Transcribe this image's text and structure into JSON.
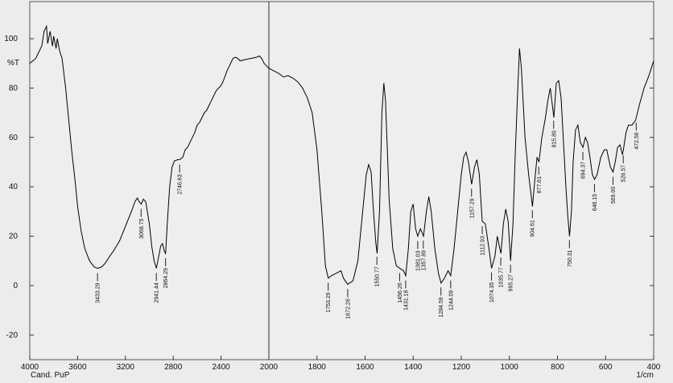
{
  "chart_data": {
    "type": "line",
    "y_label": "%T",
    "x_label": "1/cm",
    "footer": "Cand. PuP",
    "color": "#000000",
    "xlim": [
      4000,
      400
    ],
    "x_scale_change": 2000,
    "ylim": [
      -30,
      115
    ],
    "xticks": [
      4000,
      3600,
      3200,
      2800,
      2400,
      2000,
      1800,
      1600,
      1400,
      1200,
      1000,
      800,
      600,
      400
    ],
    "yticks": [
      -20,
      0,
      20,
      40,
      60,
      80,
      100
    ],
    "x": [
      4000,
      3950,
      3900,
      3880,
      3860,
      3850,
      3830,
      3810,
      3800,
      3780,
      3770,
      3750,
      3730,
      3700,
      3680,
      3650,
      3620,
      3600,
      3570,
      3540,
      3500,
      3460,
      3433,
      3400,
      3370,
      3330,
      3300,
      3250,
      3200,
      3150,
      3120,
      3100,
      3085,
      3068,
      3050,
      3030,
      3000,
      2980,
      2960,
      2941,
      2925,
      2905,
      2890,
      2875,
      2864,
      2850,
      2830,
      2810,
      2790,
      2760,
      2746,
      2720,
      2700,
      2680,
      2660,
      2640,
      2620,
      2600,
      2580,
      2560,
      2540,
      2520,
      2500,
      2470,
      2440,
      2420,
      2400,
      2380,
      2350,
      2320,
      2300,
      2280,
      2260,
      2240,
      2200,
      2150,
      2100,
      2080,
      2060,
      2040,
      2020,
      2000,
      1980,
      1960,
      1940,
      1920,
      1900,
      1880,
      1860,
      1840,
      1820,
      1800,
      1780,
      1765,
      1753,
      1740,
      1720,
      1700,
      1690,
      1672,
      1650,
      1630,
      1610,
      1595,
      1585,
      1575,
      1565,
      1555,
      1550,
      1540,
      1530,
      1522,
      1515,
      1500,
      1485,
      1470,
      1456,
      1440,
      1431,
      1420,
      1410,
      1400,
      1390,
      1381,
      1370,
      1357,
      1345,
      1335,
      1325,
      1310,
      1295,
      1284,
      1270,
      1255,
      1244,
      1230,
      1215,
      1200,
      1190,
      1180,
      1170,
      1157,
      1145,
      1135,
      1125,
      1113,
      1100,
      1085,
      1074,
      1060,
      1050,
      1040,
      1035,
      1025,
      1015,
      1005,
      995,
      985,
      975,
      965,
      958,
      950,
      935,
      920,
      904,
      895,
      885,
      877,
      865,
      850,
      840,
      830,
      820,
      815,
      805,
      795,
      785,
      775,
      765,
      757,
      750,
      742,
      735,
      725,
      715,
      705,
      694,
      684,
      675,
      665,
      655,
      646,
      635,
      620,
      605,
      595,
      580,
      569,
      560,
      550,
      540,
      530,
      526,
      515,
      505,
      490,
      475,
      460,
      440,
      420,
      400
    ],
    "values": [
      90,
      92,
      97,
      103,
      105,
      98,
      103,
      97,
      101,
      96,
      100,
      95,
      92,
      80,
      70,
      55,
      42,
      32,
      22,
      15,
      10,
      7.5,
      7,
      7.5,
      9,
      12,
      14,
      18,
      24,
      30,
      34,
      35.5,
      34,
      33,
      35,
      34,
      25,
      16,
      10,
      7,
      11,
      16,
      17,
      14,
      13,
      25,
      40,
      48,
      50.5,
      51,
      51,
      52,
      55,
      56,
      58,
      60,
      62,
      65,
      66,
      68,
      70,
      71,
      73,
      76,
      79,
      80,
      81,
      83,
      87,
      90,
      92,
      92.5,
      92,
      91,
      91.5,
      92,
      92.5,
      93,
      92,
      90,
      89,
      88,
      87,
      86,
      84.5,
      85,
      84,
      82.5,
      80,
      76,
      70,
      55,
      30,
      8,
      3,
      4,
      5,
      6,
      3,
      0.5,
      2,
      10,
      30,
      45,
      49,
      46,
      30,
      17,
      13,
      30,
      70,
      82,
      75,
      35,
      15,
      8,
      7,
      6,
      4,
      15,
      30,
      33,
      23,
      20,
      23,
      20,
      30,
      36,
      30,
      15,
      5,
      1,
      3,
      6,
      4,
      15,
      30,
      45,
      52,
      54,
      50,
      41,
      48,
      51,
      45,
      26,
      25,
      15,
      7,
      12,
      20,
      15,
      13,
      25,
      31,
      26,
      10,
      25,
      55,
      80,
      96,
      88,
      60,
      45,
      32,
      42,
      52,
      50,
      60,
      68,
      75,
      80,
      72,
      68,
      82,
      83,
      76,
      58,
      40,
      28,
      20,
      30,
      50,
      63,
      65,
      58,
      56,
      60,
      58,
      52,
      45,
      43,
      45,
      52,
      55,
      55,
      48,
      46,
      50,
      56,
      57,
      53,
      55,
      62,
      65,
      65,
      67,
      73,
      80,
      85,
      91
    ],
    "peaks": [
      3433.29,
      3068.75,
      2941.44,
      2864.29,
      2746.63,
      1753.29,
      1672.28,
      1550.77,
      1456.26,
      1431.18,
      1381.03,
      1357.89,
      1284.59,
      1244.09,
      1157.29,
      1112.93,
      1074.35,
      1035.77,
      995.27,
      904.61,
      877.61,
      815.89,
      750.31,
      694.37,
      646.15,
      {
        "value": 569.0,
        "label": "569.00"
      },
      526.57,
      472.56
    ]
  }
}
